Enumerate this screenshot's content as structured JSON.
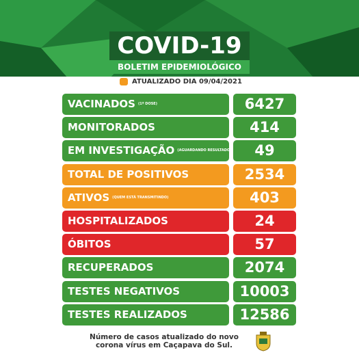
{
  "header": {
    "title": "COVID-19",
    "subtitle": "BOLETIM EPIDEMIOLÓGICO",
    "updated": "ATUALIZADO DIA 09/04/2021"
  },
  "rows": [
    {
      "label": "VACINADOS",
      "note": "(1ª DOSE)",
      "value": 6427,
      "color": "#3f9a3a"
    },
    {
      "label": "MONITORADOS",
      "value": 414,
      "color": "#3f9a3a"
    },
    {
      "label": "EM INVESTIGAÇÃO",
      "note": "(AGUARDANDO RESULTADO)",
      "value": 49,
      "color": "#3f9a3a"
    },
    {
      "label": "TOTAL DE POSITIVOS",
      "value": 2534,
      "color": "#f39a1f"
    },
    {
      "label": "ATIVOS",
      "note": "(QUEM ESTÁ TRANSMITINDO)",
      "value": 403,
      "color": "#f39a1f"
    },
    {
      "label": "HOSPITALIZADOS",
      "value": 24,
      "color": "#e0262a"
    },
    {
      "label": "ÓBITOS",
      "value": 57,
      "color": "#e0262a"
    },
    {
      "label": "RECUPERADOS",
      "value": 2074,
      "color": "#3f9a3a"
    },
    {
      "label": "TESTES NEGATIVOS",
      "value": 10003,
      "color": "#3f9a3a"
    },
    {
      "label": "TESTES REALIZADOS",
      "value": 12586,
      "color": "#3f9a3a"
    }
  ],
  "footer": {
    "text": "Número de casos atualizado do novo corona vírus em Caçapava do Sul."
  }
}
